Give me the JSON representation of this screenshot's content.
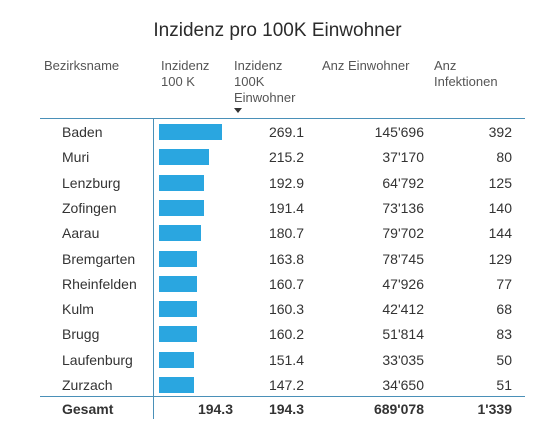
{
  "title": "Inzidenz pro 100K Einwohner",
  "headers": {
    "name": "Bezirksname",
    "bar": "Inzidenz\n100 K",
    "incidence": "Inzidenz\n100K\nEinwohner",
    "population": "Anz Einwohner",
    "infections": "Anz\nInfektionen"
  },
  "colors": {
    "bar": "#2aa6e0",
    "rule": "#4a90b8"
  },
  "chart_data": {
    "type": "table",
    "title": "Inzidenz pro 100K Einwohner",
    "sort_column": "Inzidenz 100K Einwohner",
    "bar_range": [
      0,
      269.1
    ],
    "rows": [
      {
        "name": "Baden",
        "incidence": "269.1",
        "value": 269.1,
        "population": "145'696",
        "infections": "392"
      },
      {
        "name": "Muri",
        "incidence": "215.2",
        "value": 215.2,
        "population": "37'170",
        "infections": "80"
      },
      {
        "name": "Lenzburg",
        "incidence": "192.9",
        "value": 192.9,
        "population": "64'792",
        "infections": "125"
      },
      {
        "name": "Zofingen",
        "incidence": "191.4",
        "value": 191.4,
        "population": "73'136",
        "infections": "140"
      },
      {
        "name": "Aarau",
        "incidence": "180.7",
        "value": 180.7,
        "population": "79'702",
        "infections": "144"
      },
      {
        "name": "Bremgarten",
        "incidence": "163.8",
        "value": 163.8,
        "population": "78'745",
        "infections": "129"
      },
      {
        "name": "Rheinfelden",
        "incidence": "160.7",
        "value": 160.7,
        "population": "47'926",
        "infections": "77"
      },
      {
        "name": "Kulm",
        "incidence": "160.3",
        "value": 160.3,
        "population": "42'412",
        "infections": "68"
      },
      {
        "name": "Brugg",
        "incidence": "160.2",
        "value": 160.2,
        "population": "51'814",
        "infections": "83"
      },
      {
        "name": "Laufenburg",
        "incidence": "151.4",
        "value": 151.4,
        "population": "33'035",
        "infections": "50"
      },
      {
        "name": "Zurzach",
        "incidence": "147.2",
        "value": 147.2,
        "population": "34'650",
        "infections": "51"
      }
    ],
    "total": {
      "name": "Gesamt",
      "bar_value": "194.3",
      "incidence": "194.3",
      "population": "689'078",
      "infections": "1'339"
    }
  }
}
